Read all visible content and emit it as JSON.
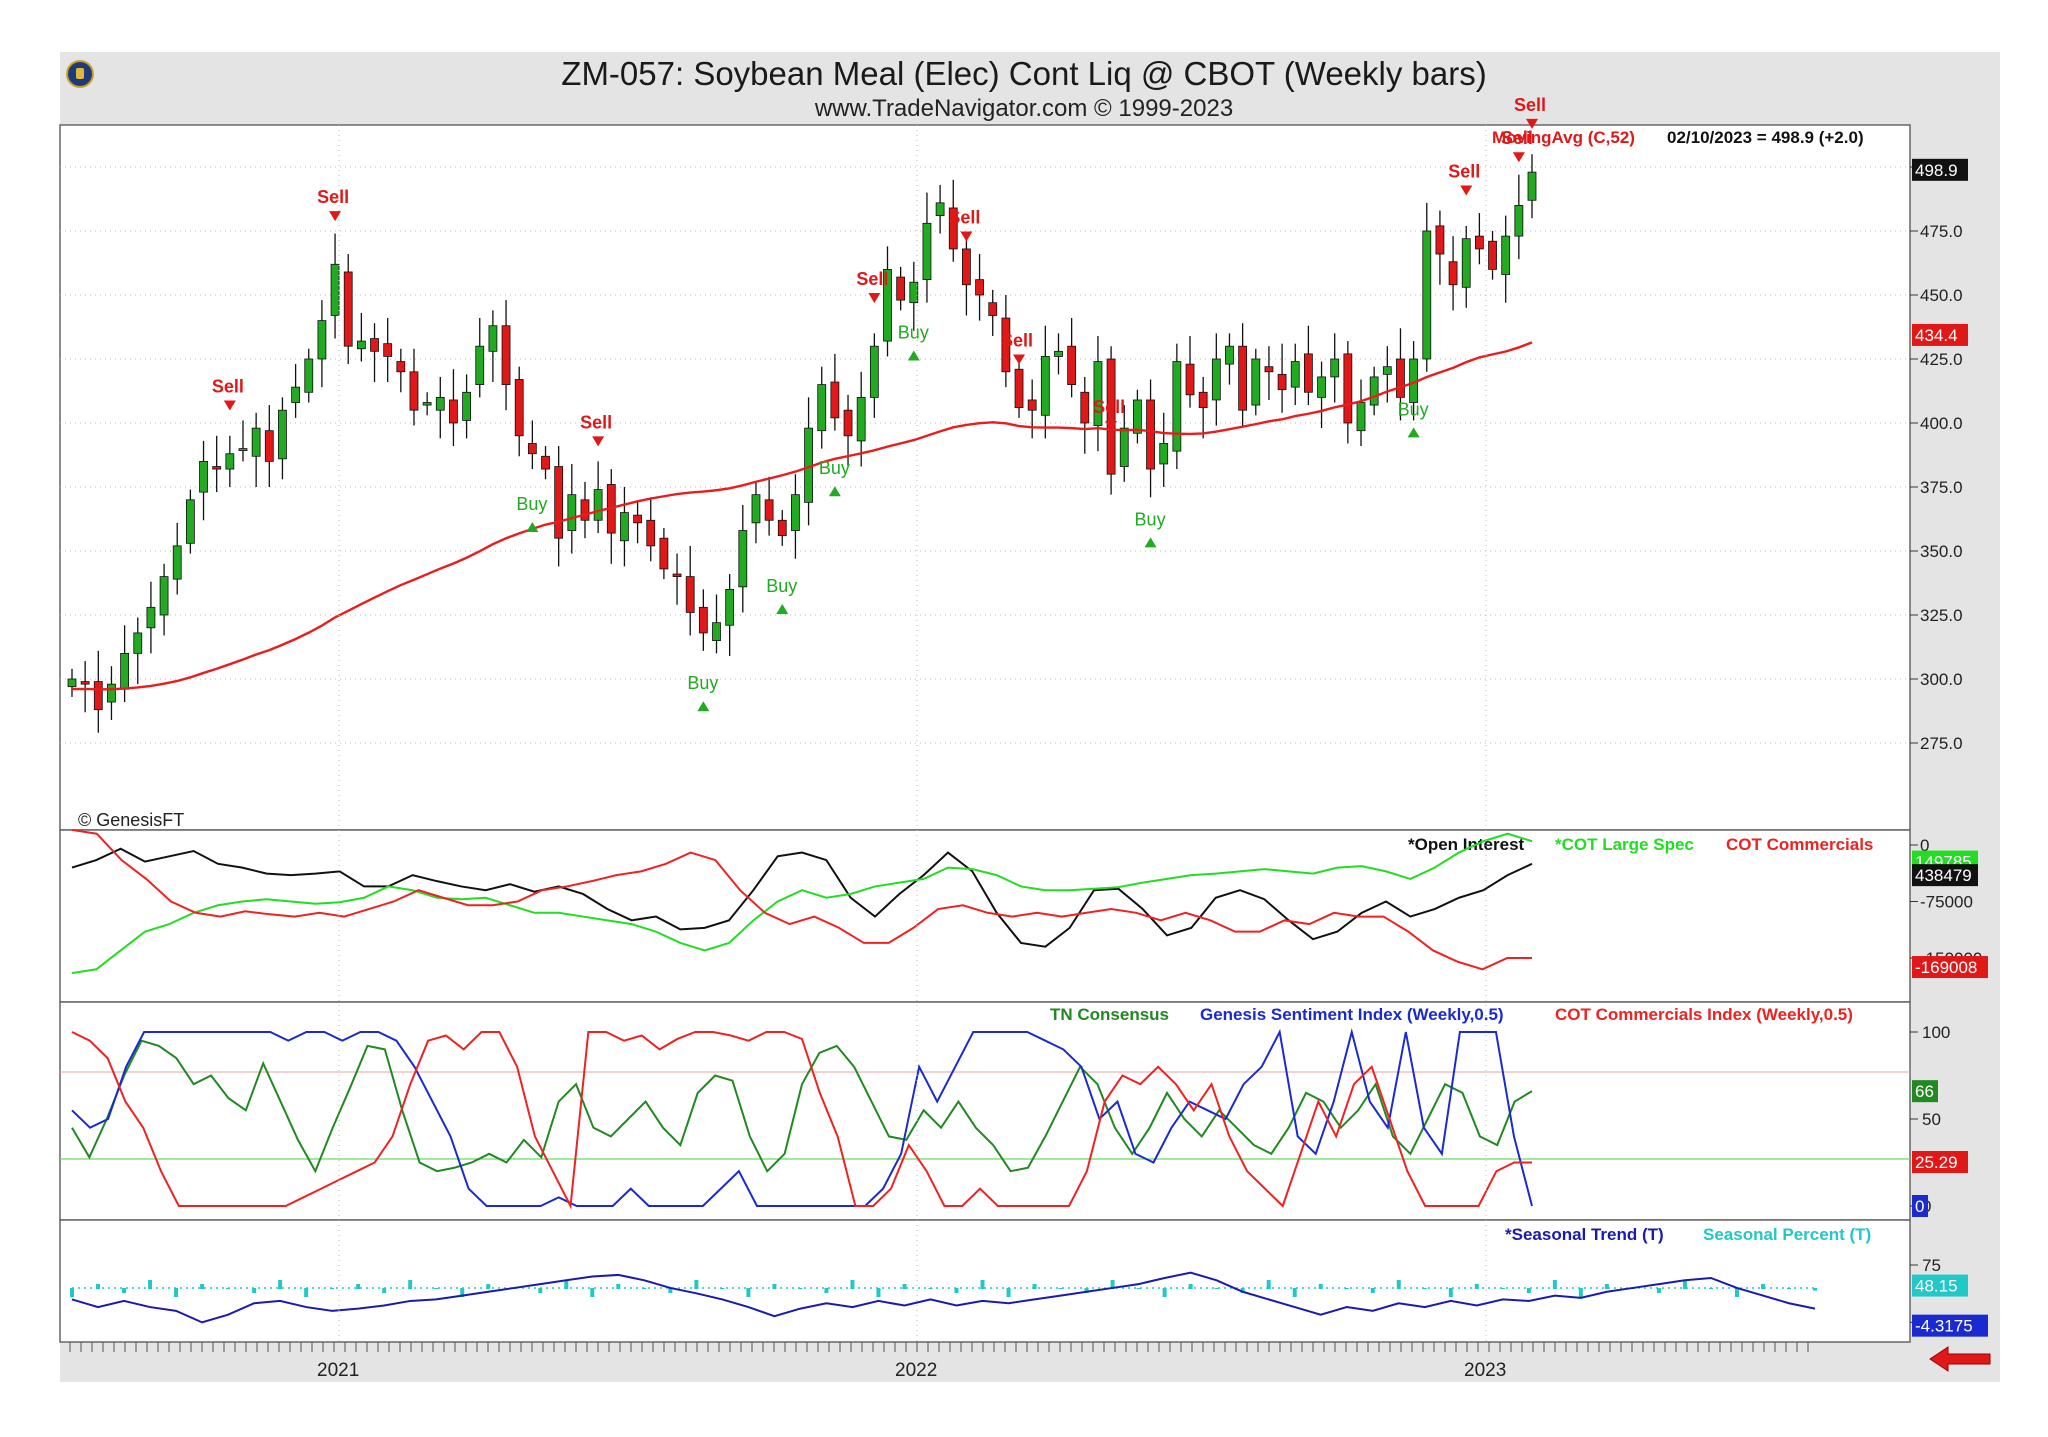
{
  "header": {
    "title": "ZM-057:  Soybean Meal (Elec) Cont Liq @ CBOT  (Weekly bars)",
    "subtitle": "www.TradeNavigator.com © 1999-2023"
  },
  "icons": {
    "logo": "app-logo-icon",
    "back": "red-left-arrow-icon"
  },
  "colors": {
    "up": "#22aa22",
    "down": "#e01818",
    "ma": "#e81e1e",
    "oi": "#111111",
    "spec": "#22dd22",
    "comm": "#ee2222",
    "tn": "#228822",
    "genesis": "#1a2ad0",
    "cotidx": "#ee2222",
    "seasonal_trend": "#1a1ab0",
    "seasonal_pct": "#22c8c8"
  },
  "chart_data": [
    {
      "panel": "price",
      "type": "candlestick",
      "title": "ZM-057:  Soybean Meal (Elec) Cont Liq @ CBOT  (Weekly bars)",
      "ylim": [
        275,
        505
      ],
      "yticks": [
        "500.0",
        "475.0",
        "450.0",
        "425.0",
        "400.0",
        "375.0",
        "350.0",
        "325.0",
        "300.0",
        "275.0"
      ],
      "xticks": [
        "2021",
        "2022",
        "2023"
      ],
      "moving_avg_label": "MovingAvg (C,52)",
      "last_info": "02/10/2023 = 498.9 (+2.0)",
      "last_price_tag": "498.9",
      "ma_tag": "434.4",
      "copyright": "© GenesisFT",
      "closes": [
        300,
        298,
        288,
        298,
        310,
        318,
        328,
        340,
        352,
        370,
        385,
        382,
        388,
        390,
        398,
        385,
        405,
        414,
        425,
        440,
        462,
        430,
        432,
        428,
        426,
        420,
        405,
        408,
        410,
        400,
        412,
        430,
        438,
        415,
        395,
        388,
        382,
        355,
        372,
        362,
        374,
        357,
        365,
        361,
        352,
        343,
        340,
        326,
        318,
        322,
        335,
        358,
        372,
        362,
        356,
        372,
        398,
        415,
        402,
        395,
        410,
        430,
        460,
        448,
        455,
        478,
        486,
        468,
        454,
        450,
        442,
        420,
        406,
        405,
        426,
        428,
        415,
        400,
        424,
        380,
        398,
        409,
        382,
        392,
        424,
        411,
        406,
        425,
        430,
        405,
        425,
        420,
        413,
        424,
        412,
        418,
        425,
        400,
        408,
        418,
        422,
        410,
        425,
        475,
        466,
        454,
        472,
        468,
        460,
        473,
        485,
        498
      ],
      "sell_signals": [
        "Sell",
        "Sell",
        "Sell",
        "Sell",
        "Sell",
        "Sell",
        "Sell",
        "Sell",
        "Sell",
        "Sell"
      ],
      "buy_signals": [
        "Buy",
        "Buy",
        "Buy",
        "Buy",
        "Buy",
        "Buy",
        "Buy"
      ]
    },
    {
      "panel": "cot",
      "type": "line",
      "legend": [
        "*Open Interest",
        "*COT Large Spec",
        "COT Commercials"
      ],
      "yticks": [
        "0",
        "-75000",
        "-150000"
      ],
      "tags": {
        "spec": "149785",
        "oi": "438479",
        "comm": "-169008"
      },
      "series": [
        {
          "name": "*Open Interest",
          "values": [
            -30000,
            -20000,
            -5000,
            -22000,
            -15000,
            -8000,
            -25000,
            -30000,
            -38000,
            -40000,
            -38000,
            -35000,
            -55000,
            -55000,
            -40000,
            -48000,
            -55000,
            -60000,
            -52000,
            -62000,
            -55000,
            -65000,
            -85000,
            -100000,
            -95000,
            -112000,
            -110000,
            -100000,
            -60000,
            -15000,
            -10000,
            -20000,
            -70000,
            -95000,
            -65000,
            -40000,
            -10000,
            -35000,
            -90000,
            -130000,
            -135000,
            -110000,
            -60000,
            -58000,
            -85000,
            -120000,
            -110000,
            -70000,
            -60000,
            -72000,
            -100000,
            -125000,
            -115000,
            -90000,
            -75000,
            -95000,
            -85000,
            -70000,
            -60000,
            -40000,
            -25000
          ]
        },
        {
          "name": "*COT Large Spec",
          "values": [
            -170000,
            -165000,
            -140000,
            -115000,
            -105000,
            -90000,
            -80000,
            -75000,
            -72000,
            -75000,
            -78000,
            -76000,
            -70000,
            -55000,
            -60000,
            -70000,
            -72000,
            -70000,
            -80000,
            -90000,
            -90000,
            -95000,
            -100000,
            -105000,
            -115000,
            -130000,
            -140000,
            -130000,
            -100000,
            -75000,
            -60000,
            -70000,
            -65000,
            -55000,
            -50000,
            -45000,
            -30000,
            -32000,
            -40000,
            -55000,
            -60000,
            -60000,
            -58000,
            -56000,
            -50000,
            -45000,
            -40000,
            -38000,
            -35000,
            -32000,
            -35000,
            -38000,
            -30000,
            -28000,
            -35000,
            -45000,
            -30000,
            -10000,
            5000,
            15000,
            5000
          ]
        },
        {
          "name": "COT Commercials",
          "values": [
            20000,
            15000,
            -20000,
            -45000,
            -75000,
            -90000,
            -95000,
            -88000,
            -92000,
            -95000,
            -90000,
            -95000,
            -85000,
            -75000,
            -60000,
            -70000,
            -80000,
            -80000,
            -75000,
            -60000,
            -55000,
            -48000,
            -40000,
            -35000,
            -25000,
            -10000,
            -20000,
            -60000,
            -90000,
            -105000,
            -95000,
            -110000,
            -130000,
            -130000,
            -110000,
            -85000,
            -80000,
            -90000,
            -95000,
            -90000,
            -95000,
            -90000,
            -85000,
            -90000,
            -100000,
            -90000,
            -100000,
            -115000,
            -115000,
            -100000,
            -105000,
            -90000,
            -95000,
            -95000,
            -115000,
            -140000,
            -155000,
            -165000,
            -150000,
            -150000
          ]
        }
      ]
    },
    {
      "panel": "sentiment",
      "type": "line",
      "legend": [
        "TN Consensus",
        "Genesis Sentiment Index (Weekly,0.5)",
        "COT Commercials Index (Weekly,0.5)"
      ],
      "ylim": [
        0,
        100
      ],
      "yticks": [
        "100",
        "50",
        "0"
      ],
      "tags": {
        "tn": "66",
        "cotidx": "25.29",
        "genesis": "0"
      },
      "series": [
        {
          "name": "TN Consensus",
          "values": [
            45,
            28,
            50,
            75,
            95,
            92,
            85,
            70,
            75,
            62,
            55,
            82,
            60,
            38,
            20,
            45,
            68,
            92,
            90,
            55,
            25,
            20,
            22,
            25,
            30,
            25,
            38,
            28,
            60,
            70,
            45,
            40,
            50,
            60,
            45,
            35,
            65,
            75,
            72,
            40,
            20,
            30,
            70,
            88,
            92,
            80,
            60,
            40,
            38,
            55,
            45,
            60,
            45,
            35,
            20,
            22,
            40,
            60,
            80,
            70,
            45,
            30,
            45,
            65,
            50,
            40,
            55,
            45,
            35,
            30,
            45,
            65,
            60,
            45,
            55,
            70,
            40,
            30,
            50,
            70,
            65,
            40,
            35,
            60,
            66
          ]
        },
        {
          "name": "Genesis Sentiment Index (Weekly,0.5)",
          "values": [
            55,
            45,
            50,
            80,
            100,
            100,
            100,
            100,
            100,
            100,
            100,
            100,
            95,
            100,
            100,
            95,
            100,
            100,
            95,
            80,
            60,
            40,
            10,
            0,
            0,
            0,
            0,
            5,
            0,
            0,
            0,
            10,
            0,
            0,
            0,
            0,
            10,
            20,
            0,
            0,
            0,
            0,
            0,
            0,
            0,
            10,
            30,
            80,
            60,
            80,
            100,
            100,
            100,
            100,
            95,
            90,
            80,
            50,
            60,
            30,
            25,
            45,
            60,
            55,
            50,
            70,
            80,
            100,
            40,
            30,
            60,
            100,
            60,
            45,
            100,
            45,
            30,
            100,
            100,
            100,
            40,
            0
          ]
        },
        {
          "name": "COT Commercials Index (Weekly,0.5)",
          "values": [
            100,
            95,
            85,
            60,
            45,
            20,
            0,
            0,
            0,
            0,
            0,
            0,
            0,
            5,
            10,
            15,
            20,
            25,
            40,
            70,
            95,
            98,
            90,
            100,
            100,
            80,
            40,
            20,
            0,
            100,
            100,
            95,
            98,
            90,
            96,
            100,
            100,
            98,
            95,
            100,
            100,
            96,
            65,
            40,
            0,
            0,
            10,
            35,
            20,
            0,
            0,
            10,
            0,
            0,
            0,
            0,
            0,
            20,
            60,
            75,
            70,
            80,
            70,
            55,
            70,
            40,
            20,
            10,
            0,
            30,
            60,
            40,
            70,
            80,
            50,
            20,
            0,
            0,
            0,
            0,
            20,
            25,
            25
          ]
        }
      ]
    },
    {
      "panel": "seasonal",
      "type": "line",
      "legend": [
        "*Seasonal Trend (T)",
        "Seasonal Percent (T)"
      ],
      "yticks": [
        "75",
        "0"
      ],
      "tags": {
        "pct": "48.15",
        "trend": "-4.3175"
      },
      "series": [
        {
          "name": "*Seasonal Trend (T)",
          "values": [
            30,
            20,
            28,
            20,
            15,
            0,
            10,
            25,
            28,
            20,
            15,
            18,
            22,
            28,
            30,
            35,
            40,
            45,
            50,
            55,
            60,
            62,
            55,
            45,
            38,
            30,
            20,
            8,
            18,
            25,
            20,
            28,
            22,
            30,
            22,
            28,
            25,
            30,
            35,
            40,
            45,
            50,
            58,
            65,
            55,
            40,
            30,
            20,
            10,
            20,
            15,
            25,
            20,
            28,
            22,
            30,
            28,
            35,
            32,
            40,
            45,
            50,
            55,
            58,
            45,
            35,
            25,
            18
          ]
        },
        {
          "name": "Seasonal Percent (T)",
          "values": [
            40,
            55,
            45,
            60,
            40,
            55,
            50,
            45,
            60,
            40,
            50,
            55,
            45,
            60,
            50,
            40,
            55,
            50,
            45,
            60,
            40,
            55,
            50,
            45,
            60,
            50,
            40,
            55,
            50,
            45,
            60,
            40,
            55,
            50,
            45,
            60,
            40,
            55,
            50,
            45,
            60,
            50,
            40,
            55,
            50,
            45,
            60,
            40,
            55,
            50,
            45,
            60,
            50,
            40,
            55,
            50,
            45,
            60,
            40,
            55,
            50,
            45,
            60,
            50,
            40,
            55,
            50,
            48
          ]
        }
      ]
    }
  ]
}
